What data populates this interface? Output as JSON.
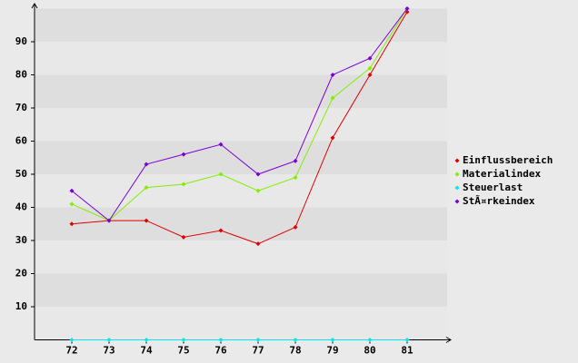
{
  "chart_data": {
    "type": "line",
    "categories": [
      "72",
      "73",
      "74",
      "75",
      "76",
      "77",
      "78",
      "79",
      "80",
      "81"
    ],
    "series": [
      {
        "name": "Einflussbereich",
        "color": "#e00000",
        "values": [
          35,
          36,
          36,
          31,
          33,
          29,
          34,
          61,
          80,
          99
        ]
      },
      {
        "name": "Materialindex",
        "color": "#80ee00",
        "values": [
          41,
          36,
          46,
          47,
          50,
          45,
          49,
          73,
          82,
          100
        ]
      },
      {
        "name": "Steuerlast",
        "color": "#00e8f0",
        "values": [
          0,
          0,
          0,
          0,
          0,
          0,
          0,
          0,
          0,
          0
        ]
      },
      {
        "name": "StÃ¤rkeindex",
        "color": "#7a00d8",
        "values": [
          45,
          36,
          53,
          56,
          59,
          50,
          54,
          80,
          85,
          100
        ]
      }
    ],
    "ylim": [
      0,
      100
    ],
    "yticks": [
      10,
      20,
      30,
      40,
      50,
      60,
      70,
      80,
      90
    ],
    "grid": true,
    "legend": "right"
  }
}
